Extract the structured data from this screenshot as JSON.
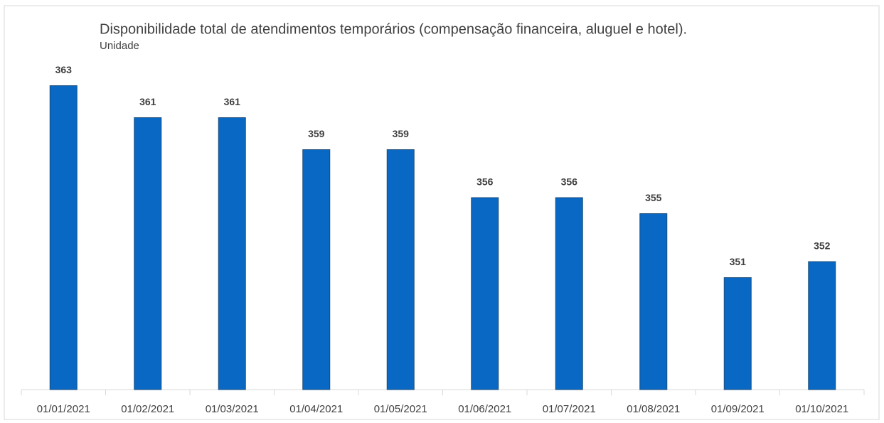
{
  "chart_data": {
    "type": "bar",
    "title": "Disponibilidade total de atendimentos temporários (compensação financeira, aluguel e hotel).",
    "subtitle": "Unidade",
    "categories": [
      "01/01/2021",
      "01/02/2021",
      "01/03/2021",
      "01/04/2021",
      "01/05/2021",
      "01/06/2021",
      "01/07/2021",
      "01/08/2021",
      "01/09/2021",
      "01/10/2021"
    ],
    "values": [
      363,
      361,
      361,
      359,
      359,
      356,
      356,
      355,
      351,
      352
    ],
    "color": "#0868c4",
    "ylim": [
      344,
      366
    ]
  }
}
